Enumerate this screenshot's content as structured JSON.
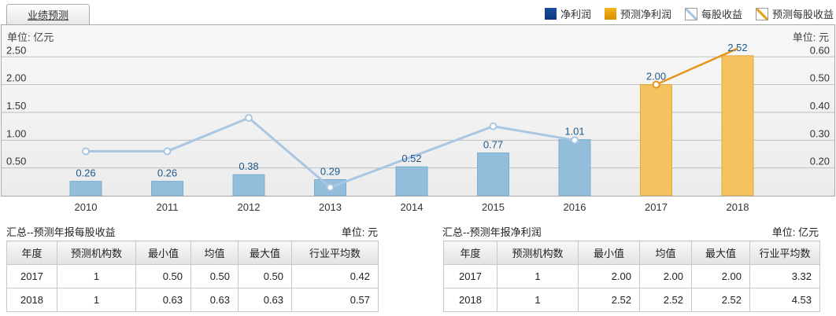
{
  "tab": {
    "label": "业绩预测"
  },
  "legend": {
    "items": [
      {
        "slug": "net-profit",
        "label": "净利润",
        "swatch": "bar",
        "color": "#1b4c9e",
        "color2": "#10377d"
      },
      {
        "slug": "forecast-net-profit",
        "label": "预测净利润",
        "swatch": "bar",
        "color": "#f5b41c",
        "color2": "#d88f00"
      },
      {
        "slug": "eps",
        "label": "每股收益",
        "swatch": "line",
        "color": "#a9c7e3"
      },
      {
        "slug": "forecast-eps",
        "label": "预测每股收益",
        "swatch": "line",
        "color": "#e8a020"
      }
    ]
  },
  "chart_data": {
    "type": "combo-bar-line-dual-axis",
    "categories": [
      "2010",
      "2011",
      "2012",
      "2013",
      "2014",
      "2015",
      "2016",
      "2017",
      "2018"
    ],
    "series": [
      {
        "name": "净利润",
        "kind": "bar",
        "axis": "left",
        "fill": "#92bedc",
        "stroke": "#7aaecf",
        "values": [
          0.26,
          0.26,
          0.38,
          0.29,
          0.52,
          0.77,
          1.01,
          null,
          null
        ],
        "show_labels": true
      },
      {
        "name": "预测净利润",
        "kind": "bar",
        "axis": "left",
        "fill": "#f5c25f",
        "stroke": "#e2a63d",
        "values": [
          null,
          null,
          null,
          null,
          null,
          null,
          null,
          2.0,
          2.52
        ],
        "show_labels": true
      },
      {
        "name": "每股收益",
        "kind": "line",
        "axis": "right",
        "color": "#a9c7e3",
        "width": 3,
        "values": [
          0.26,
          0.26,
          0.38,
          0.13,
          0.24,
          0.35,
          0.3,
          null,
          null
        ],
        "markers": [
          true,
          true,
          true,
          true,
          false,
          true,
          true,
          false,
          false
        ]
      },
      {
        "name": "预测每股收益",
        "kind": "line",
        "axis": "right",
        "color": "#e8941f",
        "width": 2.5,
        "values": [
          null,
          null,
          null,
          null,
          null,
          null,
          null,
          0.5,
          0.63
        ],
        "markers": [
          false,
          false,
          false,
          false,
          false,
          false,
          false,
          true,
          false
        ]
      }
    ],
    "left_axis": {
      "unit": "单位: 亿元",
      "ticks": [
        0.5,
        1.0,
        1.5,
        2.0,
        2.5
      ],
      "min": 0,
      "max": 3.07
    },
    "right_axis": {
      "unit": "单位: 元",
      "ticks": [
        0.2,
        0.3,
        0.4,
        0.5,
        0.6
      ],
      "min": 0.1,
      "max": 0.714
    },
    "label_color": "#1c5a8c",
    "grid": true,
    "gridline_color": "#bfbfbf"
  },
  "tables": [
    {
      "slug": "eps-forecast",
      "title": "汇总--预测年报每股收益",
      "unit": "单位: 元",
      "headers": [
        "年度",
        "预测机构数",
        "最小值",
        "均值",
        "最大值",
        "行业平均数"
      ],
      "rows": [
        [
          "2017",
          "1",
          "0.50",
          "0.50",
          "0.50",
          "0.42"
        ],
        [
          "2018",
          "1",
          "0.63",
          "0.63",
          "0.63",
          "0.57"
        ]
      ]
    },
    {
      "slug": "net-profit-forecast",
      "title": "汇总--预测年报净利润",
      "unit": "单位: 亿元",
      "headers": [
        "年度",
        "预测机构数",
        "最小值",
        "均值",
        "最大值",
        "行业平均数"
      ],
      "rows": [
        [
          "2017",
          "1",
          "2.00",
          "2.00",
          "2.00",
          "3.32"
        ],
        [
          "2018",
          "1",
          "2.52",
          "2.52",
          "2.52",
          "4.53"
        ]
      ]
    }
  ]
}
